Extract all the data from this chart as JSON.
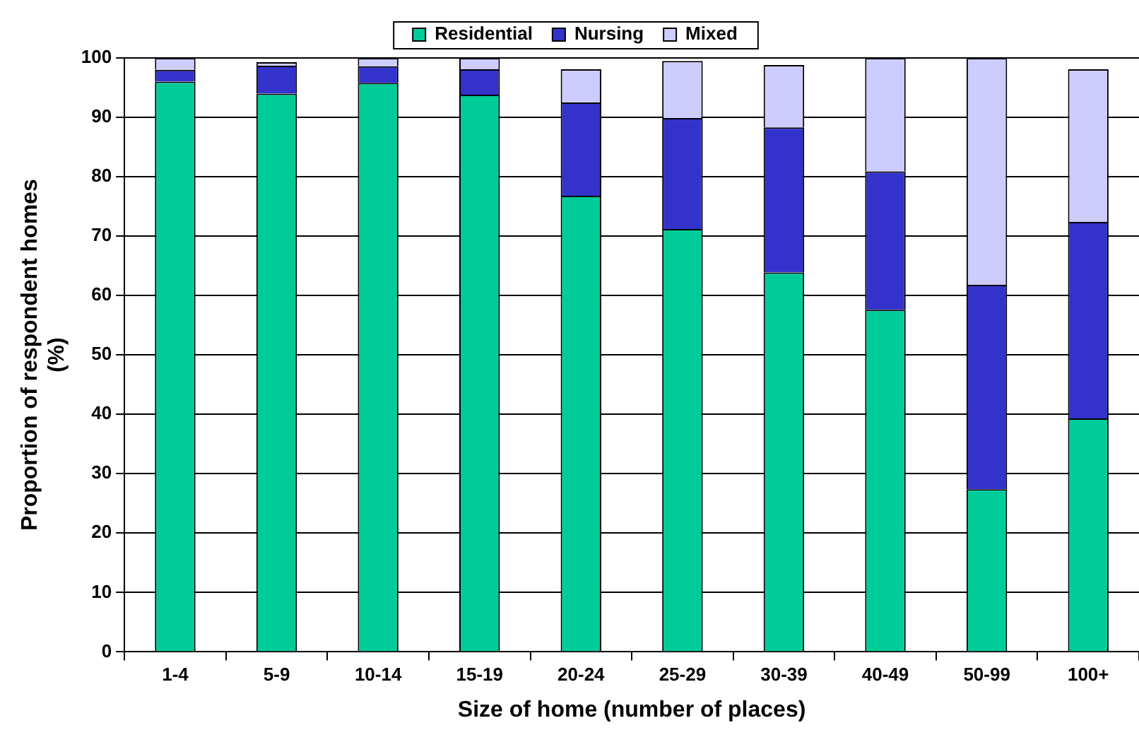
{
  "chart_data": {
    "type": "bar",
    "stacked": true,
    "xlabel": "Size of home (number of places)",
    "ylabel": "Proportion of respondent homes\n(%)",
    "categories": [
      "1-4",
      "5-9",
      "10-14",
      "15-19",
      "20-24",
      "25-29",
      "30-39",
      "40-49",
      "50-99",
      "100+"
    ],
    "series": [
      {
        "name": "Residential",
        "color": "#00cc99",
        "values": [
          96,
          94,
          95.8,
          93.8,
          76.8,
          71.2,
          63.9,
          57.6,
          27.4,
          39.3
        ]
      },
      {
        "name": "Nursing",
        "color": "#3333cc",
        "values": [
          2,
          4.7,
          2.8,
          4.3,
          15.7,
          18.7,
          24.4,
          23.3,
          34.4,
          33.1
        ]
      },
      {
        "name": "Mixed",
        "color": "#ccccff",
        "values": [
          2,
          0.6,
          1.4,
          1.9,
          5.6,
          9.6,
          10.5,
          19.1,
          38.2,
          25.7
        ]
      }
    ],
    "ylim": [
      0,
      100
    ],
    "yticks": [
      0,
      10,
      20,
      30,
      40,
      50,
      60,
      70,
      80,
      90,
      100
    ],
    "grid": "y",
    "legend": "top"
  }
}
